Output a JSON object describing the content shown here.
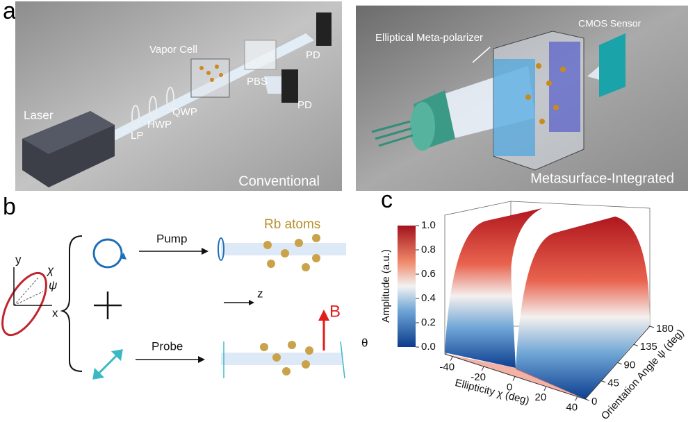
{
  "panel_a": {
    "label": "a",
    "conventional": {
      "caption": "Conventional",
      "vapor_cell": "Vapor Cell",
      "pbs": "PBS",
      "pd_top": "PD",
      "pd_bottom": "PD",
      "laser": "Laser",
      "lp": "LP",
      "hwp": "HWP",
      "qwp": "QWP"
    },
    "integrated": {
      "caption": "Metasurface-Integrated",
      "meta_polarizer": "Elliptical Meta-polarizer",
      "sensor": "CMOS Sensor"
    }
  },
  "panel_b": {
    "label": "b",
    "y_axis": "y",
    "x_axis": "x",
    "chi": "χ",
    "psi": "ψ",
    "pump": "Pump",
    "atoms": "Rb atoms",
    "z_axis": "z",
    "field": "B",
    "probe": "Probe",
    "theta": "θ"
  },
  "panel_c": {
    "label": "c",
    "colorbar": {
      "title": "Amplitude (a.u.)",
      "lim": [
        0,
        1
      ],
      "ticks": [
        {
          "value": 0,
          "label": "0.0"
        },
        {
          "value": 0.2,
          "label": "0.2"
        },
        {
          "value": 0.4,
          "label": "0.4"
        },
        {
          "value": 0.6,
          "label": "0.6"
        },
        {
          "value": 0.8,
          "label": "0.8"
        },
        {
          "value": 1,
          "label": "1.0"
        }
      ]
    },
    "x_label": "Ellipticity χ (deg)",
    "xlim": [
      -45,
      45
    ],
    "x_ticks": [
      -40,
      -20,
      0,
      20,
      40
    ],
    "y_label": "Orientation Angle ψ (deg)",
    "ylim": [
      0,
      180
    ],
    "y_ticks": [
      0,
      45,
      90,
      135,
      180
    ]
  }
}
